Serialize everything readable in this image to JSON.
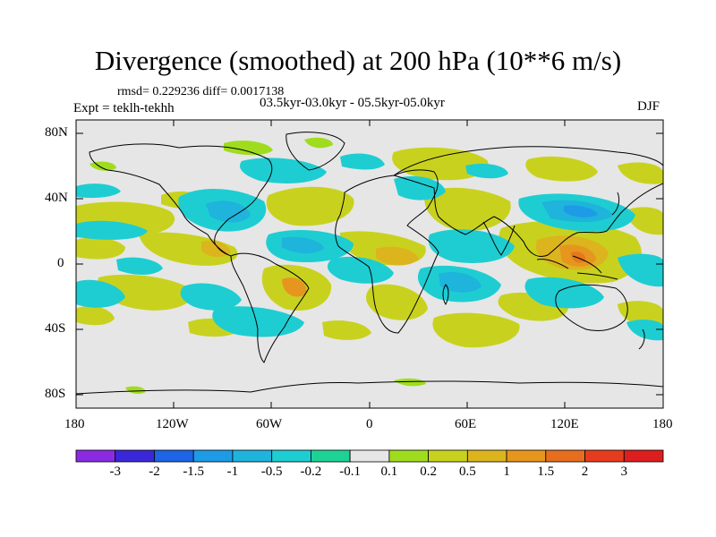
{
  "title": "Divergence (smoothed) at 200 hPa (10**6 m/s)",
  "stats": "rmsd= 0.229236 diff= 0.0017138",
  "period": "03.5kyr-03.0kyr - 05.5kyr-05.0kyr",
  "experiment": "Expt = teklh-tekhh",
  "season": "DJF",
  "axes": {
    "lat_labels": [
      "80N",
      "40N",
      "0",
      "40S",
      "80S"
    ],
    "lon_labels": [
      "180",
      "120W",
      "60W",
      "0",
      "60E",
      "120E",
      "180"
    ]
  },
  "colorbar": {
    "labels": [
      "-3",
      "-2",
      "-1.5",
      "-1",
      "-0.5",
      "-0.2",
      "-0.1",
      "0.1",
      "0.2",
      "0.5",
      "1",
      "1.5",
      "2",
      "3"
    ],
    "colors": [
      "#8a2be2",
      "#3a28d8",
      "#1e64e6",
      "#1e9be6",
      "#1eb4dc",
      "#1ecdd2",
      "#1ed296",
      "#e6e6e6",
      "#a0dc1e",
      "#c8d21e",
      "#dcb41e",
      "#e6961e",
      "#e66e1e",
      "#e63c1e",
      "#dc1e1e"
    ]
  },
  "field_colors": {
    "background": "#e6e6e6",
    "pos_weak": "#c8d21e",
    "pos_mid": "#dcb41e",
    "pos_strong": "#e6961e",
    "pos_max": "#e6781e",
    "neg_weak": "#1ecdd2",
    "neg_mid": "#1eb4dc",
    "neg_strong": "#1e9be6",
    "lime": "#a0dc1e"
  }
}
